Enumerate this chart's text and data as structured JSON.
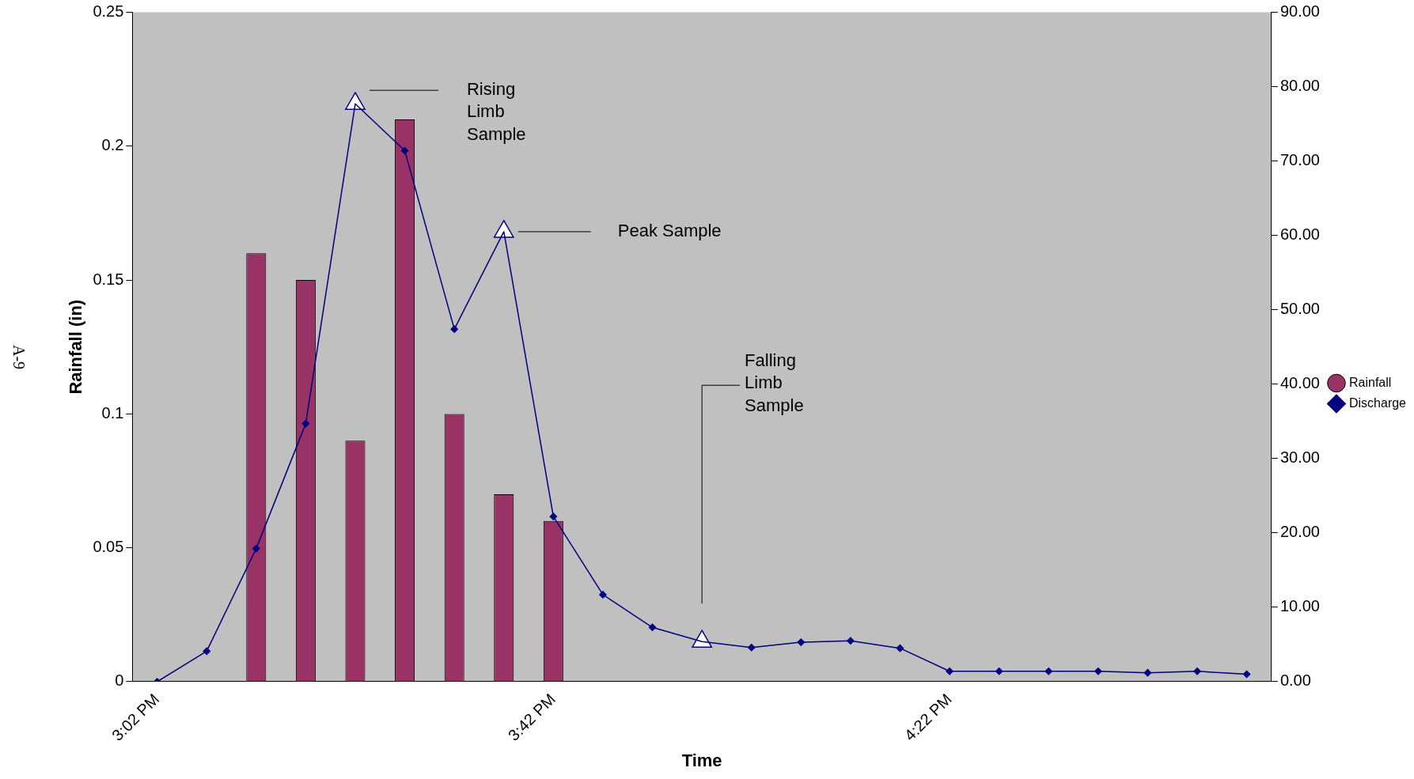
{
  "chart_data": {
    "type": "bar",
    "xlabel": "Time",
    "ylabel": "Rainfall (in)",
    "categories": [
      "3:02 PM",
      null,
      null,
      null,
      null,
      null,
      null,
      null,
      "3:42 PM",
      null,
      null,
      null,
      null,
      null,
      null,
      null,
      "4:22 PM",
      null,
      null,
      null,
      null,
      null,
      null
    ],
    "series": [
      {
        "name": "Rainfall",
        "color": "#993366",
        "values": [
          0,
          0,
          0.16,
          0.15,
          0.09,
          0.21,
          0.1,
          0.07,
          0.06,
          0,
          0,
          0,
          0,
          0,
          0,
          0,
          0,
          0,
          0,
          0,
          0,
          0,
          0
        ]
      },
      {
        "name": "Discharge",
        "type": "line",
        "axis": "y2",
        "color": "#000080",
        "marker": "diamond",
        "values": [
          0,
          4.1,
          17.9,
          34.7,
          77.7,
          71.4,
          47.4,
          60.5,
          22.2,
          11.7,
          7.3,
          5.4,
          4.6,
          5.3,
          5.5,
          4.5,
          1.4,
          1.4,
          1.4,
          1.4,
          1.2,
          1.4,
          1.0
        ]
      },
      {
        "type": "scatter",
        "axis": "y2",
        "color": "#ffffff",
        "marker": "triangle",
        "values": [
          null,
          null,
          null,
          null,
          77.7,
          null,
          null,
          60.5,
          null,
          null,
          null,
          5.4,
          null,
          null,
          null,
          null,
          null,
          null,
          null,
          null,
          null,
          null,
          null
        ]
      }
    ],
    "ylim": [
      0,
      0.25
    ],
    "yticks": [
      0,
      0.05,
      0.1,
      0.15,
      0.2,
      0.25
    ],
    "y2lim": [
      0,
      90
    ],
    "y2ticks": [
      {
        "value": 0,
        "label": "0.00"
      },
      {
        "value": 10,
        "label": "10.00"
      },
      {
        "value": 20,
        "label": "20.00"
      },
      {
        "value": 30,
        "label": "30.00"
      },
      {
        "value": 40,
        "label": "40.00"
      },
      {
        "value": 50,
        "label": "50.00"
      },
      {
        "value": 60,
        "label": "60.00"
      },
      {
        "value": 70,
        "label": "70.00"
      },
      {
        "value": 80,
        "label": "80.00"
      },
      {
        "value": 90,
        "label": "90.00"
      }
    ],
    "grid": false,
    "legend": "right",
    "annotations": [
      "Rising Limb Sample",
      "Peak Sample",
      "Falling Limb Sample",
      "A-9"
    ]
  }
}
